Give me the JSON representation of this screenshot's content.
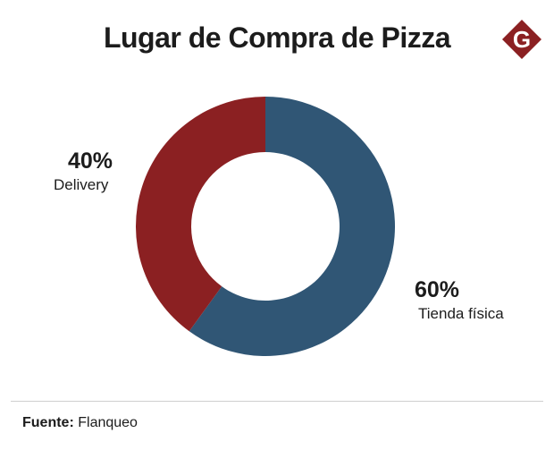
{
  "header": {
    "title": "Lugar de Compra de Pizza",
    "logo_letter": "G"
  },
  "colors": {
    "delivery": "#8b2022",
    "tienda": "#305675",
    "logo": "#8b2022"
  },
  "chart_data": {
    "type": "pie",
    "variant": "donut",
    "title": "Lugar de Compra de Pizza",
    "slices": [
      {
        "name": "Tienda física",
        "value": 60,
        "label": "60%"
      },
      {
        "name": "Delivery",
        "value": 40,
        "label": "40%"
      }
    ]
  },
  "footer": {
    "source_label": "Fuente:",
    "source_value": "Flanqueo"
  }
}
